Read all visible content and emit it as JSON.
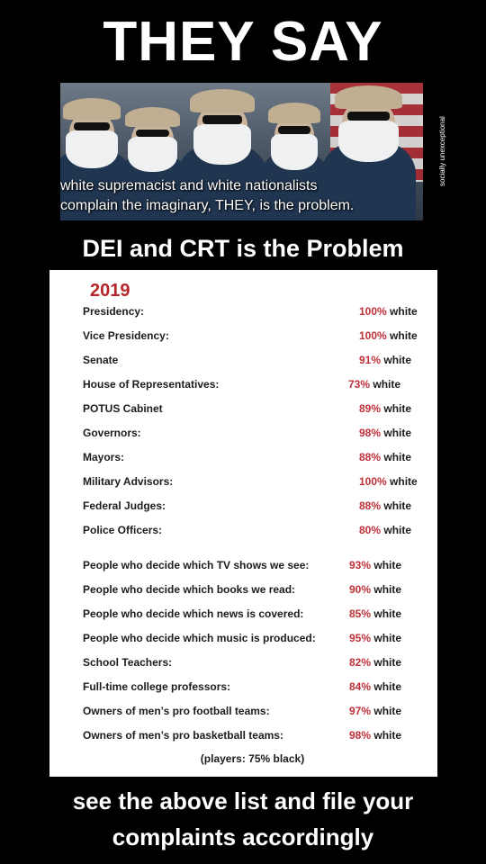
{
  "title": "THEY SAY",
  "photo": {
    "caption_line1": "white supremacist and white nationalists",
    "caption_line2": "complain the imaginary, THEY, is the problem.",
    "credit": "socially unexceptional"
  },
  "headline": "DEI and CRT is the Problem",
  "table": {
    "year": "2019",
    "groups": [
      [
        {
          "label": "Presidency:",
          "percent": "100%",
          "suffix": " white"
        },
        {
          "label": "Vice Presidency:",
          "percent": "100%",
          "suffix": " white"
        },
        {
          "label": "Senate",
          "percent": "91%",
          "suffix": " white"
        },
        {
          "label": "House of Representatives:",
          "percent": "73%",
          "suffix": " white"
        },
        {
          "label": "POTUS Cabinet",
          "percent": "89%",
          "suffix": " white"
        },
        {
          "label": "Governors:",
          "percent": "98%",
          "suffix": " white"
        },
        {
          "label": "Mayors:",
          "percent": "88%",
          "suffix": " white"
        },
        {
          "label": "Military Advisors:",
          "percent": "100%",
          "suffix": " white"
        },
        {
          "label": "Federal Judges:",
          "percent": "88%",
          "suffix": " white"
        },
        {
          "label": "Police Officers:",
          "percent": "80%",
          "suffix": " white"
        }
      ],
      [
        {
          "label": "People who decide which TV shows we see:",
          "percent": "93%",
          "suffix": " white"
        },
        {
          "label": "People who decide which books we read:",
          "percent": "90%",
          "suffix": " white"
        },
        {
          "label": "People who decide which news is covered:",
          "percent": "85%",
          "suffix": " white"
        },
        {
          "label": "People who decide which music is produced:",
          "percent": "95%",
          "suffix": " white"
        },
        {
          "label": "School Teachers:",
          "percent": "82%",
          "suffix": " white"
        },
        {
          "label": "Full-time college professors:",
          "percent": "84%",
          "suffix": " white"
        },
        {
          "label": "Owners of men’s pro football teams:",
          "percent": "97%",
          "suffix": " white"
        },
        {
          "label": "Owners of men’s pro basketball teams:",
          "percent": "98%",
          "suffix": " white"
        }
      ]
    ],
    "note": "(players: 75% black)"
  },
  "footer": {
    "line1": "see the above list and file your",
    "line2": "complaints accordingly"
  },
  "colors": {
    "background": "#000000",
    "accent_red": "#c0303a",
    "card": "#ffffff"
  }
}
